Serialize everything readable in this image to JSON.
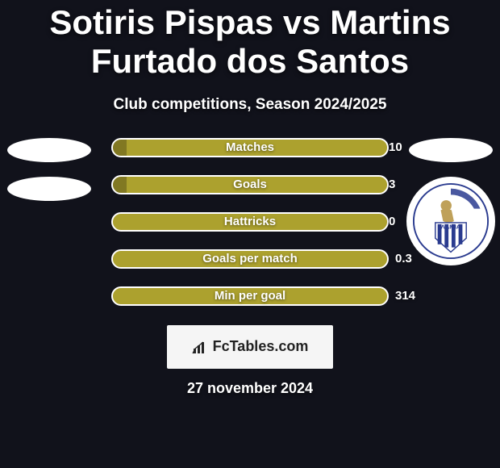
{
  "title": "Sotiris Pispas vs Martins Furtado dos Santos",
  "subtitle": "Club competitions, Season 2024/2025",
  "footer_brand": "FcTables.com",
  "date_text": "27 november 2024",
  "colors": {
    "bg": "#11121b",
    "bar_fill": "#aca12e",
    "bar_border": "#ffffff",
    "text": "#ffffff",
    "logo_bg": "#f5f5f5",
    "logo_text": "#222222"
  },
  "stats": [
    {
      "label": "Matches",
      "right_value": "10",
      "left_fill_pct": 5
    },
    {
      "label": "Goals",
      "right_value": "3",
      "left_fill_pct": 5
    },
    {
      "label": "Hattricks",
      "right_value": "0",
      "left_fill_pct": 0
    },
    {
      "label": "Goals per match",
      "right_value": "0.3",
      "left_fill_pct": 0
    },
    {
      "label": "Min per goal",
      "right_value": "314",
      "left_fill_pct": 0
    }
  ],
  "sides": {
    "left": {
      "ovals": 2,
      "has_crest": false
    },
    "right": {
      "ovals": 1,
      "has_crest": true,
      "crest_name": "lamia-crest"
    }
  },
  "crest": {
    "stripe_color": "#2a3b8f",
    "bg": "#ffffff",
    "ring": "#2a3b8f",
    "figure": "#bfa15a"
  }
}
